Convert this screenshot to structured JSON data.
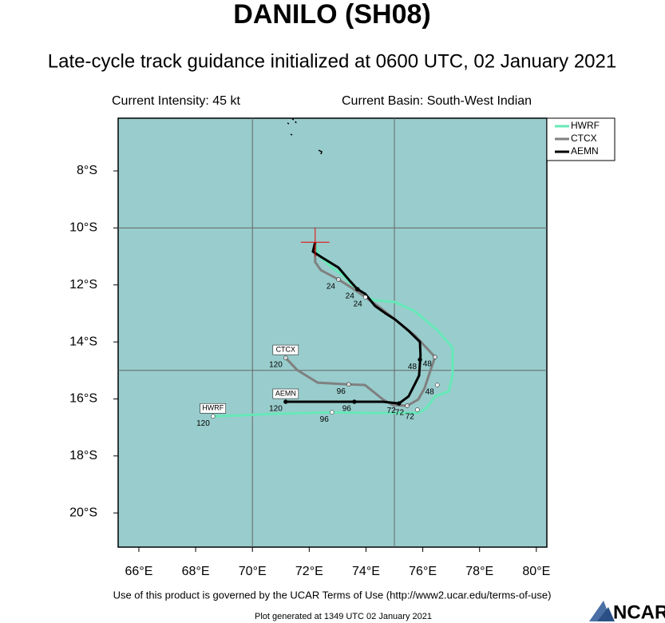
{
  "chart_data": {
    "type": "track_map",
    "title": "DANILO (SH08)",
    "subtitle": "Late-cycle track guidance initialized at 0600 UTC, 02 January 2021",
    "intensity_text": "Current Intensity: 45 kt",
    "basin_text": "Current Basin: South-West Indian",
    "footer": "Use of this product is governed by the UCAR Terms of Use (http://www2.ucar.edu/terms-of-use)",
    "generated": "Plot generated at 1349 UTC   02 January 2021",
    "logo": "NCAR",
    "ocean_color": "#99cccc",
    "xlim": [
      65.27,
      80.37
    ],
    "ylim": [
      -21.2,
      -6.15
    ],
    "xticks": [
      {
        "value": 66,
        "label": "66°E"
      },
      {
        "value": 68,
        "label": "68°E"
      },
      {
        "value": 70,
        "label": "70°E"
      },
      {
        "value": 72,
        "label": "72°E"
      },
      {
        "value": 74,
        "label": "74°E"
      },
      {
        "value": 76,
        "label": "76°E"
      },
      {
        "value": 78,
        "label": "78°E"
      },
      {
        "value": 80,
        "label": "80°E"
      }
    ],
    "yticks": [
      {
        "value": -8,
        "label": "8°S"
      },
      {
        "value": -10,
        "label": "10°S"
      },
      {
        "value": -12,
        "label": "12°S"
      },
      {
        "value": -14,
        "label": "14°S"
      },
      {
        "value": -16,
        "label": "16°S"
      },
      {
        "value": -18,
        "label": "18°S"
      },
      {
        "value": -20,
        "label": "20°S"
      }
    ],
    "grid_lons": [
      70,
      75
    ],
    "grid_lats": [
      -10,
      -15
    ],
    "current_position": {
      "lon": 72.21,
      "lat": -10.5
    },
    "series": [
      {
        "name": "HWRF",
        "color": "#66e8b8",
        "lon": [
          72.21,
          72.35,
          72.8,
          73.2,
          73.59,
          73.98,
          74.32,
          75.02,
          75.73,
          76.51,
          77.05,
          77.05,
          76.91,
          76.43,
          76.15,
          75.87,
          74.04,
          72.8,
          70.81,
          69.54,
          68.61
        ],
        "lat": [
          -10.5,
          -10.97,
          -11.39,
          -11.67,
          -12.09,
          -12.43,
          -12.54,
          -12.6,
          -12.93,
          -13.58,
          -14.2,
          -15.18,
          -15.74,
          -15.91,
          -16.3,
          -16.49,
          -16.49,
          -16.47,
          -16.52,
          -16.58,
          -16.61
        ],
        "markers": [
          {
            "label": 24,
            "lon": 73.98,
            "lat": -12.43
          },
          {
            "label": 48,
            "lon": 76.51,
            "lat": -15.51
          },
          {
            "label": 72,
            "lon": 75.81,
            "lat": -16.38
          },
          {
            "label": 96,
            "lon": 72.8,
            "lat": -16.47
          },
          {
            "label": 120,
            "lon": 68.61,
            "lat": -16.61
          }
        ]
      },
      {
        "name": "CTCX",
        "color": "#808080",
        "lon": [
          72.21,
          72.21,
          72.41,
          73.03,
          73.48,
          73.98,
          74.49,
          75.02,
          75.73,
          76.43,
          76.21,
          76.06,
          75.84,
          75.45,
          74.94,
          74.6,
          73.96,
          73.39,
          72.3,
          71.57,
          71.17
        ],
        "lat": [
          -10.5,
          -11.2,
          -11.48,
          -11.81,
          -12.09,
          -12.43,
          -12.79,
          -13.21,
          -13.78,
          -14.53,
          -15.18,
          -15.63,
          -16.02,
          -16.24,
          -16.21,
          -16.02,
          -15.51,
          -15.49,
          -15.43,
          -14.98,
          -14.56
        ],
        "markers": [
          {
            "label": 24,
            "lon": 73.03,
            "lat": -11.81
          },
          {
            "label": 48,
            "lon": 76.43,
            "lat": -14.53
          },
          {
            "label": 72,
            "lon": 75.45,
            "lat": -16.24
          },
          {
            "label": 96,
            "lon": 73.39,
            "lat": -15.49
          },
          {
            "label": 120,
            "lon": 71.17,
            "lat": -14.56
          }
        ]
      },
      {
        "name": "AEMN",
        "color": "#000000",
        "lon": [
          72.21,
          72.13,
          72.44,
          73.03,
          73.39,
          73.7,
          73.98,
          74.32,
          74.72,
          75.02,
          75.5,
          75.9,
          75.92,
          75.87,
          75.73,
          75.5,
          75.16,
          74.6,
          73.59,
          72.8,
          71.79,
          71.17
        ],
        "lat": [
          -10.5,
          -10.83,
          -11.03,
          -11.39,
          -11.81,
          -12.15,
          -12.32,
          -12.74,
          -13.02,
          -13.21,
          -13.61,
          -14.0,
          -14.48,
          -15.18,
          -15.46,
          -15.91,
          -16.16,
          -16.1,
          -16.1,
          -16.1,
          -16.1,
          -16.1
        ],
        "markers": [
          {
            "label": 24,
            "lon": 73.7,
            "lat": -12.15
          },
          {
            "label": 48,
            "lon": 75.9,
            "lat": -14.62
          },
          {
            "label": 72,
            "lon": 75.16,
            "lat": -16.16
          },
          {
            "label": 96,
            "lon": 73.59,
            "lat": -16.1
          },
          {
            "label": 120,
            "lon": 71.17,
            "lat": -16.1
          }
        ]
      }
    ]
  }
}
